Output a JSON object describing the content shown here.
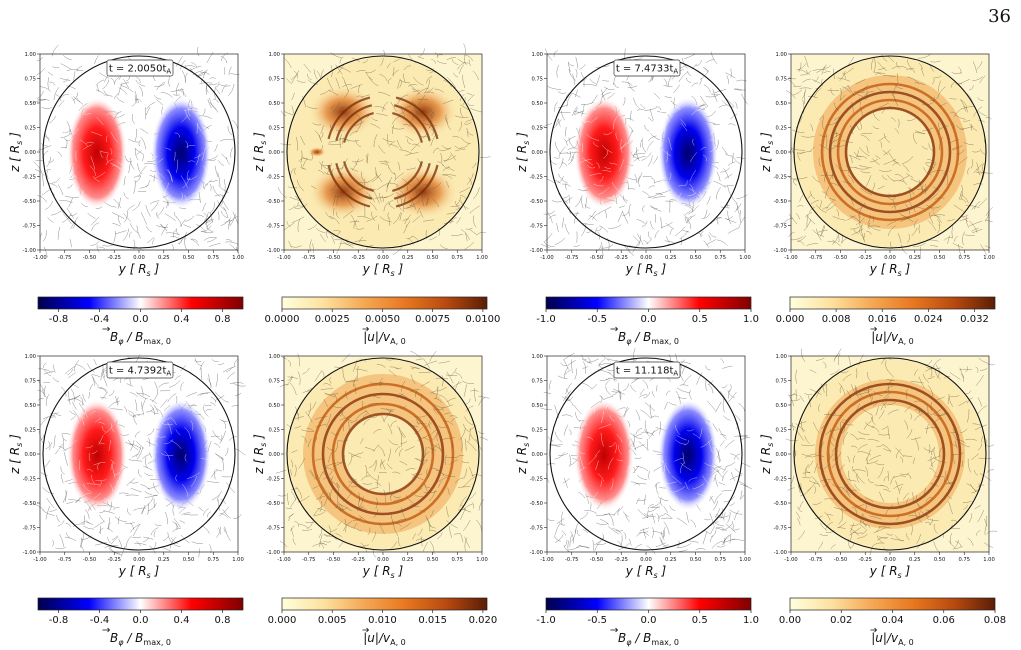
{
  "page_number": "36",
  "colors": {
    "bphi_stops": [
      "#00004c",
      "#0000ff",
      "#ffffff",
      "#ff0000",
      "#7f0000"
    ],
    "u_stops": [
      "#ffffdd",
      "#fde2a0",
      "#f5a855",
      "#e8781f",
      "#b84a10",
      "#5a1e05"
    ]
  },
  "panels": [
    {
      "time_label": "t = 2.0050t",
      "time_sub": "A"
    },
    {
      "time_label": "t = 7.4733t",
      "time_sub": "A"
    },
    {
      "time_label": "t = 4.7392t",
      "time_sub": "A"
    },
    {
      "time_label": "t = 11.118t",
      "time_sub": "A"
    }
  ],
  "axes": {
    "xlabel": "y [ R",
    "ylabel": "z [ R",
    "label_sub": "s",
    "label_close": " ]",
    "xticks": [
      "-1.00",
      "-0.75",
      "-0.50",
      "-0.25",
      "0.00",
      "0.25",
      "0.50",
      "0.75",
      "1.00"
    ],
    "yticks": [
      "1.00",
      "0.75",
      "0.50",
      "0.25",
      "0.00",
      "-0.25",
      "-0.50",
      "-0.75",
      "-1.00"
    ]
  },
  "colorbars": [
    {
      "kind": "bphi",
      "ticks": [
        "-0.8",
        "-0.4",
        "0.0",
        "0.4",
        "0.8"
      ],
      "tick_pos": [
        0.1,
        0.3,
        0.5,
        0.7,
        0.9
      ]
    },
    {
      "kind": "u",
      "ticks": [
        "0.0000",
        "0.0025",
        "0.0050",
        "0.0075",
        "0.0100"
      ],
      "tick_pos": [
        0.0,
        0.245,
        0.49,
        0.735,
        0.98
      ]
    },
    {
      "kind": "bphi",
      "ticks": [
        "-1.0",
        "-0.5",
        "0.0",
        "0.5",
        "1.0"
      ],
      "tick_pos": [
        0.0,
        0.25,
        0.5,
        0.75,
        1.0
      ]
    },
    {
      "kind": "u",
      "ticks": [
        "0.000",
        "0.008",
        "0.016",
        "0.024",
        "0.032"
      ],
      "tick_pos": [
        0.0,
        0.225,
        0.45,
        0.675,
        0.9
      ]
    },
    {
      "kind": "bphi",
      "ticks": [
        "-0.8",
        "-0.4",
        "0.0",
        "0.4",
        "0.8"
      ],
      "tick_pos": [
        0.1,
        0.3,
        0.5,
        0.7,
        0.9
      ]
    },
    {
      "kind": "u",
      "ticks": [
        "0.000",
        "0.005",
        "0.010",
        "0.015",
        "0.020"
      ],
      "tick_pos": [
        0.0,
        0.245,
        0.49,
        0.735,
        0.98
      ]
    },
    {
      "kind": "bphi",
      "ticks": [
        "-1.0",
        "-0.5",
        "0.0",
        "0.5",
        "1.0"
      ],
      "tick_pos": [
        0.0,
        0.25,
        0.5,
        0.75,
        1.0
      ]
    },
    {
      "kind": "u",
      "ticks": [
        "0.00",
        "0.02",
        "0.04",
        "0.06",
        "0.08"
      ],
      "tick_pos": [
        0.0,
        0.25,
        0.5,
        0.75,
        1.0
      ]
    }
  ],
  "colorbar_labels": {
    "bphi_main": "B",
    "bphi_sub": "φ",
    "bphi_div": " / B",
    "bphi_sub2": "max, 0",
    "u_main": "|u|/v",
    "u_sub": "A, 0"
  }
}
